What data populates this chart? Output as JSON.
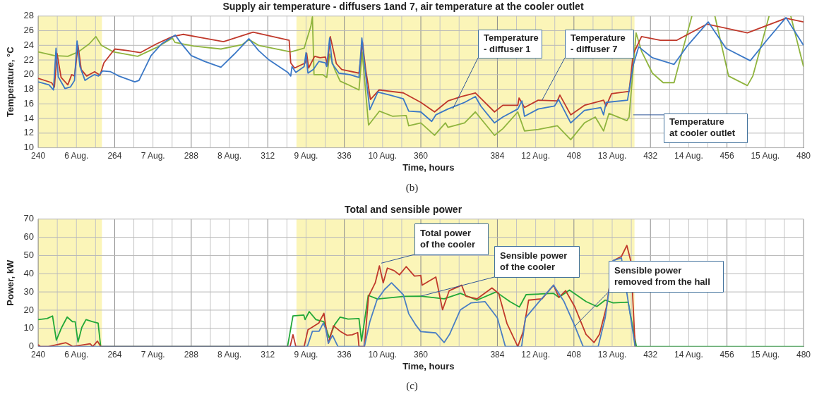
{
  "chart_data": [
    {
      "type": "line",
      "title": "Supply air temperature - diffusers 1and 7, air temperature at the cooler outlet",
      "xlabel": "Time, hours",
      "ylabel": "Temperature, °C",
      "xlim": [
        240,
        480
      ],
      "ylim": [
        10,
        28
      ],
      "grid": true,
      "xticks": [
        240,
        {
          "value": 246,
          "label": null
        },
        {
          "value": 252,
          "label": "6 Aug."
        },
        {
          "value": 258,
          "label": null
        },
        264,
        {
          "value": 270,
          "label": null
        },
        {
          "value": 276,
          "label": "7 Aug."
        },
        {
          "value": 282,
          "label": null
        },
        288,
        {
          "value": 294,
          "label": null
        },
        {
          "value": 300,
          "label": "8 Aug."
        },
        {
          "value": 306,
          "label": null
        },
        312,
        {
          "value": 318,
          "label": null
        },
        {
          "value": 324,
          "label": "9 Aug."
        },
        {
          "value": 330,
          "label": null
        },
        336,
        {
          "value": 342,
          "label": null
        },
        {
          "value": 348,
          "label": "10 Aug."
        },
        {
          "value": 354,
          "label": null
        },
        360,
        {
          "value": 366,
          "label": null
        },
        {
          "value": 372,
          "label": null
        },
        {
          "value": 378,
          "label": null
        },
        384,
        {
          "value": 390,
          "label": null
        },
        {
          "value": 396,
          "label": "12 Aug."
        },
        {
          "value": 402,
          "label": null
        },
        408,
        {
          "value": 414,
          "label": null
        },
        {
          "value": 420,
          "label": "13 Aug."
        },
        {
          "value": 426,
          "label": null
        },
        432,
        {
          "value": 438,
          "label": null
        },
        {
          "value": 444,
          "label": "14 Aug."
        },
        {
          "value": 450,
          "label": null
        },
        456,
        {
          "value": 462,
          "label": null
        },
        {
          "value": 468,
          "label": "15 Aug."
        },
        {
          "value": 474,
          "label": null
        },
        480
      ],
      "yticks": [
        10,
        12,
        14,
        16,
        18,
        20,
        22,
        24,
        26,
        28
      ],
      "bands": [
        {
          "axis": "x",
          "from": 240,
          "to": 260,
          "color": "#faf3ac"
        },
        {
          "axis": "x",
          "from": 321,
          "to": 427,
          "color": "#faf3ac"
        }
      ],
      "series": [
        {
          "color": "#3b78c6",
          "x": [
            240,
            243.4,
            244.8,
            245.6,
            246.3,
            248.4,
            250.1,
            251.4,
            252.2,
            253.1,
            254.7,
            256,
            257.7,
            258.9,
            260.2,
            262.7,
            265.3,
            270.3,
            271.6,
            275.4,
            278.7,
            283,
            284.6,
            288,
            292.2,
            297.3,
            301.5,
            306.1,
            309.1,
            312.4,
            318.3,
            319.2,
            319.6,
            320.8,
            323.4,
            324,
            324.6,
            326.3,
            328,
            330.1,
            330.5,
            331.4,
            332.2,
            334.3,
            337.7,
            340.6,
            341.5,
            342.7,
            344,
            346.5,
            350.3,
            354.5,
            356.2,
            360,
            363.4,
            364.7,
            368.5,
            373.7,
            377.1,
            378.8,
            383.1,
            385.7,
            390.4,
            391.7,
            392.5,
            396.8,
            401.9,
            403.2,
            407,
            411.3,
            416.4,
            417.3,
            418.1,
            424.8,
            426.6,
            428.3,
            432.6,
            439.4,
            443.7,
            450.1,
            455.7,
            463.3,
            468.5,
            474.5,
            480
          ],
          "values": [
            19.0,
            18.6,
            17.9,
            23.6,
            19.7,
            18.1,
            18.3,
            19.2,
            24.6,
            21.1,
            19.2,
            19.6,
            20.0,
            19.8,
            20.5,
            20.4,
            19.8,
            19.0,
            19.2,
            22.6,
            24.2,
            25.4,
            24.4,
            22.6,
            21.8,
            21.0,
            22.8,
            24.9,
            23.3,
            22.0,
            20.3,
            19.8,
            21.1,
            20.3,
            21.1,
            23.0,
            20.2,
            20.7,
            21.8,
            21.6,
            21.1,
            25.0,
            21.5,
            20.2,
            20.0,
            19.6,
            25.0,
            20.0,
            15.2,
            17.6,
            17.2,
            16.7,
            15.0,
            14.9,
            13.6,
            14.5,
            15.3,
            16.2,
            17.0,
            15.7,
            13.4,
            14.2,
            15.3,
            16.4,
            14.3,
            15.3,
            15.7,
            16.6,
            13.4,
            15.1,
            15.5,
            14.5,
            16.2,
            16.5,
            21.3,
            23.8,
            22.3,
            21.4,
            24.0,
            27.2,
            23.6,
            21.9,
            24.7,
            27.8,
            24.0
          ]
        },
        {
          "color": "#c0392b",
          "x": [
            240,
            244.2,
            245.1,
            245.9,
            247.2,
            249.3,
            250.5,
            251.4,
            252.5,
            253.5,
            255.2,
            257.7,
            259.4,
            260.6,
            264,
            267.8,
            272,
            277.1,
            282.1,
            285.5,
            290.5,
            298.1,
            307.4,
            318.7,
            319.2,
            320.4,
            323.8,
            324.2,
            324.8,
            326.7,
            328.4,
            330.1,
            330.7,
            331.6,
            333.5,
            335.2,
            340.6,
            341.7,
            342.7,
            344.2,
            346.9,
            354.5,
            360,
            364.3,
            368.5,
            372.8,
            377.1,
            383.1,
            385.7,
            390.4,
            390.8,
            392.5,
            396.8,
            402.8,
            403.6,
            407,
            411.3,
            417.3,
            418.1,
            419.8,
            425.3,
            426.6,
            429.2,
            435.1,
            440.3,
            449.7,
            462.4,
            474.5,
            480
          ],
          "values": [
            19.5,
            18.9,
            18.3,
            22.9,
            19.6,
            18.6,
            20.0,
            19.8,
            24.0,
            20.7,
            19.8,
            20.4,
            19.9,
            21.6,
            23.5,
            23.3,
            23.0,
            24.2,
            25.2,
            25.5,
            25.1,
            24.5,
            25.8,
            24.7,
            21.6,
            20.9,
            21.6,
            22.9,
            20.9,
            22.5,
            22.3,
            22.4,
            21.3,
            25.2,
            21.5,
            20.7,
            20.2,
            24.4,
            20.7,
            16.6,
            17.9,
            17.5,
            16.2,
            14.9,
            16.4,
            17.0,
            17.5,
            14.9,
            15.8,
            15.8,
            16.8,
            15.5,
            16.5,
            16.4,
            17.2,
            14.5,
            15.8,
            16.5,
            15.7,
            17.4,
            17.7,
            22.8,
            25.2,
            24.7,
            24.7,
            26.9,
            25.7,
            27.7,
            27.2
          ]
        },
        {
          "color": "#8fb43e",
          "x": [
            240,
            245.1,
            249.3,
            252.6,
            256,
            258.1,
            259.8,
            263.6,
            271.2,
            277.1,
            282.1,
            282.9,
            288.8,
            297.3,
            304,
            306.1,
            309.1,
            319.2,
            323.4,
            325.5,
            326,
            326.5,
            329.2,
            330.5,
            331.4,
            333,
            334.7,
            336.8,
            340.6,
            341.6,
            343.6,
            347,
            351.2,
            355.4,
            356.2,
            360,
            364.3,
            367.7,
            368.5,
            373.7,
            377.1,
            383.1,
            385.7,
            390.4,
            392.5,
            396.8,
            402.8,
            407,
            411.3,
            414.7,
            417.3,
            419,
            424.6,
            425.3,
            427.5,
            429.2,
            432.6,
            436,
            439.4,
            442,
            445,
            446.5,
            452.2,
            456.5,
            462.4,
            464.1,
            469.2,
            471,
            476,
            480
          ],
          "values": [
            23.1,
            22.6,
            22.5,
            23.1,
            24.2,
            25.2,
            24.0,
            23.1,
            22.5,
            23.7,
            25.0,
            24.4,
            23.9,
            23.5,
            24.1,
            24.8,
            24.0,
            23.1,
            23.6,
            26.6,
            27.9,
            20.0,
            20.0,
            19.6,
            22.8,
            20.7,
            19.1,
            18.7,
            17.9,
            23.1,
            13.1,
            15.0,
            14.3,
            14.4,
            13.0,
            13.4,
            11.7,
            13.4,
            12.8,
            13.4,
            14.9,
            11.7,
            12.6,
            14.9,
            12.3,
            12.5,
            13.0,
            11.1,
            13.4,
            14.2,
            12.3,
            14.7,
            13.7,
            14.2,
            25.7,
            23.2,
            20.2,
            18.9,
            18.9,
            23.2,
            28,
            null,
            28,
            19.8,
            18.5,
            19.8,
            28,
            null,
            28,
            21.1
          ]
        }
      ],
      "annotations": [
        {
          "text": "Temperature - diffuser 1",
          "x": 370,
          "y": 15.3
        },
        {
          "text": "Temperature - diffuser 7",
          "x": 398,
          "y": 16.5
        },
        {
          "text": "Temperature at cooler outlet",
          "x": 426.6,
          "y": 14.5
        },
        "(b)"
      ]
    },
    {
      "type": "line",
      "title": "Total and sensible power",
      "xlabel": "Time, hours",
      "ylabel": "Power, kW",
      "xlim": [
        240,
        480
      ],
      "ylim": [
        0,
        70
      ],
      "grid": true,
      "xticks": [
        240,
        {
          "value": 246,
          "label": null
        },
        {
          "value": 252,
          "label": "6 Aug."
        },
        {
          "value": 258,
          "label": null
        },
        264,
        {
          "value": 270,
          "label": null
        },
        {
          "value": 276,
          "label": "7 Aug."
        },
        {
          "value": 282,
          "label": null
        },
        288,
        {
          "value": 294,
          "label": null
        },
        {
          "value": 300,
          "label": "8 Aug."
        },
        {
          "value": 306,
          "label": null
        },
        312,
        {
          "value": 318,
          "label": null
        },
        {
          "value": 324,
          "label": "9 Aug."
        },
        {
          "value": 330,
          "label": null
        },
        336,
        {
          "value": 342,
          "label": null
        },
        {
          "value": 348,
          "label": "10 Aug."
        },
        {
          "value": 354,
          "label": null
        },
        360,
        {
          "value": 366,
          "label": null
        },
        {
          "value": 372,
          "label": null
        },
        {
          "value": 378,
          "label": null
        },
        384,
        {
          "value": 390,
          "label": null
        },
        {
          "value": 396,
          "label": "12 Aug."
        },
        {
          "value": 402,
          "label": null
        },
        408,
        {
          "value": 414,
          "label": null
        },
        {
          "value": 420,
          "label": "13 Aug."
        },
        {
          "value": 426,
          "label": null
        },
        432,
        {
          "value": 438,
          "label": null
        },
        {
          "value": 444,
          "label": "14 Aug."
        },
        {
          "value": 450,
          "label": null
        },
        456,
        {
          "value": 462,
          "label": null
        },
        {
          "value": 468,
          "label": "15 Aug."
        },
        {
          "value": 474,
          "label": null
        },
        480
      ],
      "yticks": [
        0,
        10,
        20,
        30,
        40,
        50,
        60,
        70
      ],
      "bands": [
        {
          "axis": "x",
          "from": 240,
          "to": 260,
          "color": "#faf3ac"
        },
        {
          "axis": "x",
          "from": 321,
          "to": 427,
          "color": "#faf3ac"
        }
      ],
      "series": [
        {
          "color": "#4a7ec4",
          "x": [
            240,
            324.4,
            326,
            328.1,
            329.4,
            330.3,
            331,
            332.3,
            334,
            342.3,
            344,
            346.2,
            348.6,
            350.8,
            352.9,
            354.5,
            356.2,
            358.3,
            360,
            364.7,
            367.3,
            369,
            372.4,
            375.8,
            380.1,
            384,
            386.5,
            391.6,
            392.8,
            397.1,
            401.6,
            404.9,
            408.3,
            410.9,
            415.6,
            417.8,
            420.3,
            422.9,
            427.2
          ],
          "values": [
            0,
            0,
            8.4,
            8.4,
            12.9,
            9.2,
            1.8,
            6.2,
            0,
            0,
            13.6,
            25.4,
            31.3,
            35.0,
            31.3,
            28.4,
            18.0,
            12.1,
            8.2,
            7.5,
            2.2,
            6.7,
            20.2,
            24.0,
            24.7,
            15.7,
            0,
            0,
            15.7,
            24.7,
            33.7,
            24.7,
            11.2,
            0,
            0,
            15.7,
            47.2,
            48.7,
            0
          ]
        },
        {
          "color": "#c0392b",
          "x": [
            240,
            240.7,
            243.2,
            248.7,
            249.9,
            250.8,
            256.3,
            257.1,
            258.6,
            259.6,
            319,
            319.9,
            320.8,
            323.4,
            324.6,
            325.9,
            328,
            329.6,
            331,
            332.6,
            334.7,
            336.8,
            338.5,
            340.2,
            340.6,
            342.3,
            343.6,
            345.7,
            347,
            348.2,
            349.5,
            351.6,
            353.3,
            355.4,
            358,
            360,
            360.4,
            364.7,
            366.8,
            368.9,
            372.8,
            374.1,
            377.6,
            382.3,
            384.4,
            387,
            390.4,
            392.1,
            393.8,
            398,
            401.6,
            403.3,
            405.4,
            408.3,
            411.8,
            414.3,
            416,
            418.2,
            420.3,
            422.9,
            424.6,
            425.9,
            427.2
          ],
          "values": [
            1,
            0,
            0,
            2.1,
            1.0,
            0,
            1.5,
            0,
            3.0,
            0,
            0,
            6.5,
            0,
            0,
            9.2,
            10.6,
            12.9,
            18.3,
            1.8,
            11.4,
            8.4,
            6.2,
            6.5,
            7.7,
            0,
            0,
            27.6,
            35.0,
            44.3,
            35.0,
            43.1,
            41.7,
            39.4,
            43.9,
            38.7,
            39.0,
            33.7,
            38.2,
            20.2,
            30.7,
            33.7,
            27.7,
            26.2,
            32.2,
            29.2,
            12.7,
            0,
            8.2,
            25.5,
            26.2,
            33.7,
            27.0,
            30.7,
            21.7,
            6.7,
            2.2,
            6.7,
            21.7,
            47.2,
            49.5,
            55.5,
            46.5,
            0
          ]
        },
        {
          "color": "#22a838",
          "x": [
            240,
            242.8,
            244.5,
            245.7,
            247.4,
            249.1,
            250.8,
            251.6,
            252.5,
            253.7,
            255,
            257.1,
            258.8,
            259.6,
            318.2,
            319.9,
            323.3,
            323.7,
            325,
            327.1,
            329.6,
            331.3,
            333,
            334.7,
            337.2,
            340.6,
            341.4,
            343.5,
            346.4,
            354.9,
            360,
            367.3,
            372.4,
            377.6,
            383.6,
            387.9,
            390.9,
            393,
            401.6,
            403.3,
            406.6,
            411.8,
            415.2,
            417.8,
            420.3,
            425,
            427.6,
            480
          ],
          "values": [
            14.8,
            15.4,
            16.8,
            3.5,
            10.6,
            16.2,
            13.6,
            13.6,
            2.5,
            10.6,
            14.8,
            13.6,
            12.9,
            0,
            0,
            16.8,
            17.3,
            14.8,
            19.2,
            14.8,
            13.6,
            4.7,
            12.1,
            16.2,
            15.1,
            15.4,
            3.0,
            28.1,
            26.1,
            27.6,
            27.7,
            26.2,
            29.2,
            25.5,
            30.0,
            24.7,
            21.7,
            28.5,
            29.2,
            27.0,
            31.0,
            24.7,
            22.0,
            25.5,
            24.0,
            24.4,
            0,
            0
          ]
        }
      ],
      "annotations": [
        {
          "text": "Total power of the cooler",
          "x": 347.6,
          "y": 45.8
        },
        {
          "text": "Sensible power of the cooler",
          "x": 360,
          "y": 27.7
        },
        {
          "text": "Sensible power removed from the hall",
          "x": 408.3,
          "y": 11.2
        },
        "(c)"
      ]
    }
  ]
}
